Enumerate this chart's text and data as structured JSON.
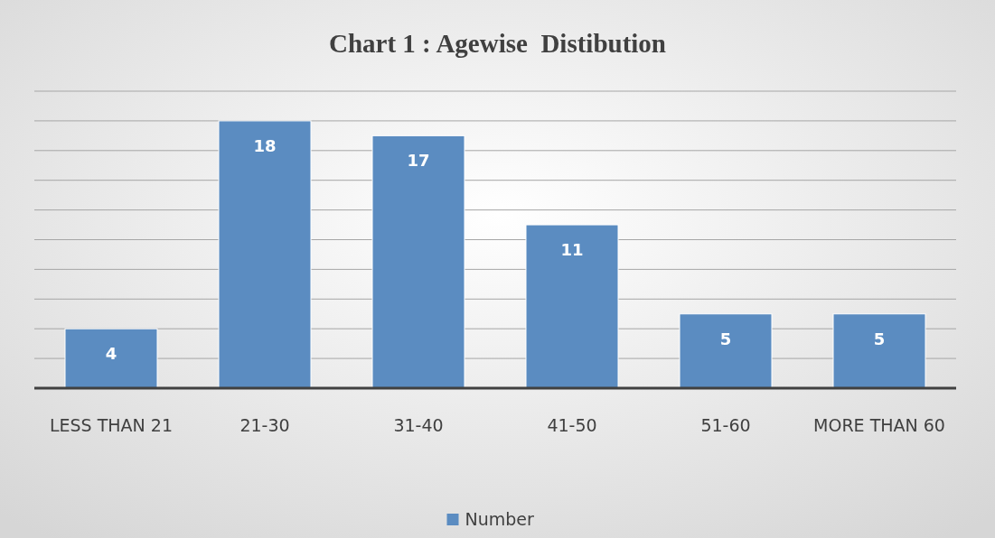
{
  "chart_data": {
    "type": "bar",
    "title": "Chart 1 : Agewise  Distibution",
    "categories": [
      "LESS THAN 21",
      "21-30",
      "31-40",
      "41-50",
      "51-60",
      "MORE THAN 60"
    ],
    "series": [
      {
        "name": "Number",
        "color": "#5b8cc1",
        "values": [
          4,
          18,
          17,
          11,
          5,
          5
        ]
      }
    ],
    "ylim": [
      0,
      20
    ],
    "yticks": [
      {
        "value": 0,
        "label": null
      },
      {
        "value": 2,
        "label": null
      },
      {
        "value": 4,
        "label": null
      },
      {
        "value": 6,
        "label": null
      },
      {
        "value": 8,
        "label": null
      },
      {
        "value": 10,
        "label": null
      },
      {
        "value": 12,
        "label": null
      },
      {
        "value": 14,
        "label": null
      },
      {
        "value": 16,
        "label": null
      },
      {
        "value": 18,
        "label": null
      },
      {
        "value": 20,
        "label": null
      }
    ],
    "tick_labels": "x",
    "grid": "y",
    "data_labels": true,
    "legend": "bottom"
  }
}
